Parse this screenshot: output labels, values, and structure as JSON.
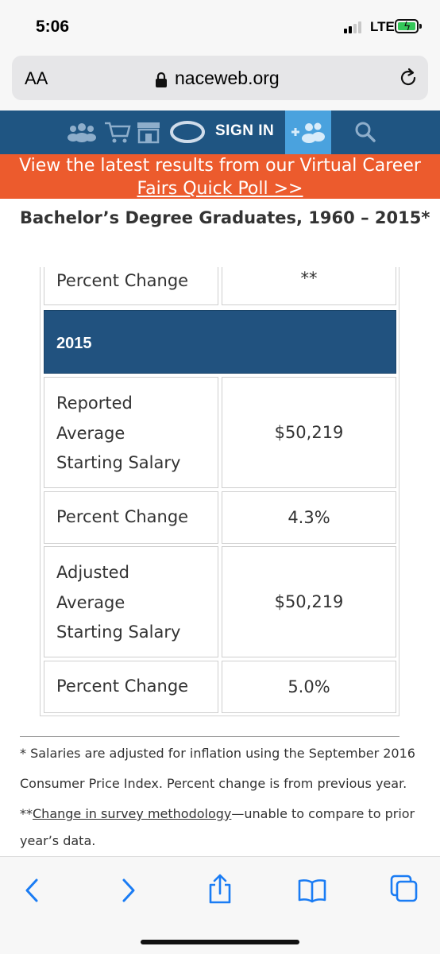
{
  "status_bar": {
    "time": "5:06",
    "network": "LTE"
  },
  "address_bar": {
    "text_size_label": "AA",
    "url": "naceweb.org"
  },
  "site_nav": {
    "signin_label": "SIGN IN"
  },
  "banner": {
    "line1": "View the latest results from our Virtual Career",
    "line2": "Fairs Quick Poll >>"
  },
  "page": {
    "heading": "Bachelor’s Degree Graduates, 1960 – 2015*"
  },
  "table": {
    "top_row": {
      "label": "Percent Change",
      "value": "**"
    },
    "year": "2015",
    "rows": [
      {
        "label_lines": [
          "Reported",
          "Average",
          "Starting Salary"
        ],
        "value": "$50,219"
      },
      {
        "label": "Percent Change",
        "value": "4.3%"
      },
      {
        "label_lines": [
          "Adjusted",
          "Average",
          "Starting Salary"
        ],
        "value": "$50,219"
      },
      {
        "label": "Percent Change",
        "value": "5.0%"
      }
    ]
  },
  "footnotes": {
    "note1_line1": "* Salaries are adjusted for inflation using the September 2016",
    "note1_line2": "Consumer Price Index. Percent change is from previous year.",
    "note2_prefix": "**",
    "note2_link": "Change in survey methodology",
    "note2_rest": "—unable to compare to prior",
    "note2_line2": "year’s data."
  },
  "colors": {
    "nav_blue": "#1f5582",
    "banner_orange": "#ec5b2d",
    "year_header_blue": "#21527f",
    "join_blue": "#4aa2de",
    "ios_blue": "#1a7cf4"
  },
  "icons": [
    "people-icon",
    "cart-icon",
    "store-icon",
    "logo-swirl-icon",
    "add-user-icon",
    "search-icon",
    "back-icon",
    "forward-icon",
    "share-icon",
    "bookmarks-icon",
    "tabs-icon",
    "lock-icon",
    "reload-icon"
  ]
}
